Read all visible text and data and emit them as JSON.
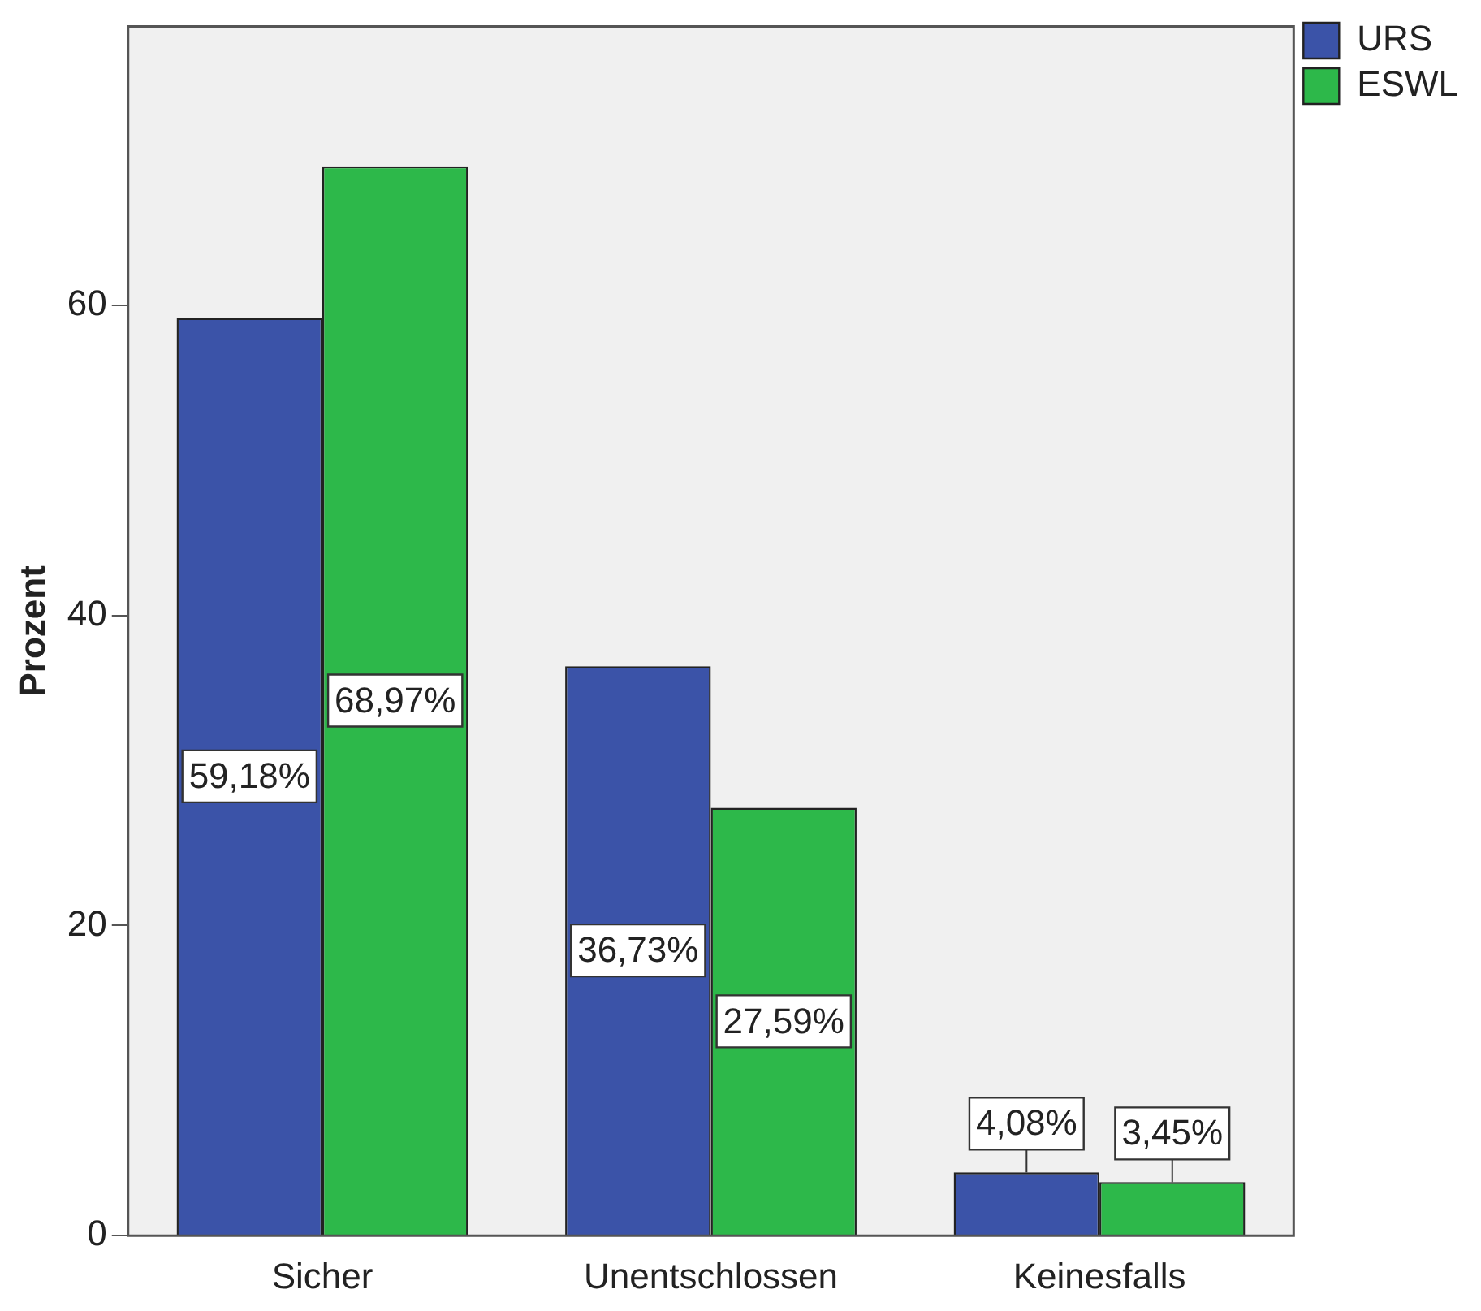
{
  "chart_data": {
    "type": "bar",
    "ylabel": "Prozent",
    "categories": [
      "Sicher",
      "Unentschlossen",
      "Keinesfalls"
    ],
    "series": [
      {
        "name": "URS",
        "color": "#3b53a8",
        "values": [
          59.18,
          36.73,
          4.08
        ],
        "value_labels": [
          "59,18%",
          "36,73%",
          "4,08%"
        ]
      },
      {
        "name": "ESWL",
        "color": "#2db84a",
        "values": [
          68.97,
          27.59,
          3.45
        ],
        "value_labels": [
          "68,97%",
          "27,59%",
          "3,45%"
        ]
      }
    ],
    "ylim": [
      0,
      78
    ],
    "yticks": [
      0,
      20,
      40,
      60
    ],
    "grid": false,
    "legend": "right"
  }
}
